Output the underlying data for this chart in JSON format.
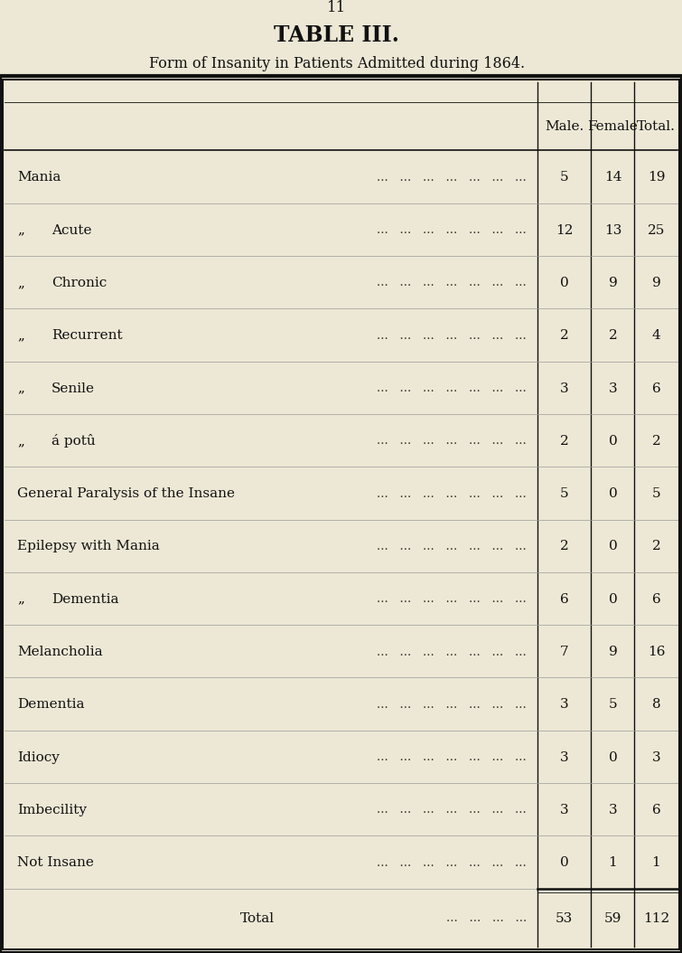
{
  "page_number": "11",
  "title": "TABLE III.",
  "subtitle": "Form of Insanity in Patients Admitted during 1864.",
  "col_headers": [
    "Male.",
    "Female",
    "Total."
  ],
  "rows": [
    {
      "label": "Mania",
      "indent": 0,
      "prefix": "",
      "male": "5",
      "female": "14",
      "total": "19"
    },
    {
      "label": "Acute",
      "indent": 1,
      "prefix": "„",
      "male": "12",
      "female": "13",
      "total": "25"
    },
    {
      "label": "Chronic",
      "indent": 1,
      "prefix": "„",
      "male": "0",
      "female": "9",
      "total": "9"
    },
    {
      "label": "Recurrent",
      "indent": 1,
      "prefix": "„",
      "male": "2",
      "female": "2",
      "total": "4"
    },
    {
      "label": "Senile",
      "indent": 1,
      "prefix": "„",
      "male": "3",
      "female": "3",
      "total": "6"
    },
    {
      "label": "á potû",
      "indent": 1,
      "prefix": "„",
      "male": "2",
      "female": "0",
      "total": "2"
    },
    {
      "label": "General Paralysis of the Insane",
      "indent": 0,
      "prefix": "",
      "male": "5",
      "female": "0",
      "total": "5"
    },
    {
      "label": "Epilepsy with Mania",
      "indent": 0,
      "prefix": "",
      "male": "2",
      "female": "0",
      "total": "2"
    },
    {
      "label": "Dementia",
      "indent": 1,
      "prefix": "„",
      "male": "6",
      "female": "0",
      "total": "6"
    },
    {
      "label": "Melancholia",
      "indent": 0,
      "prefix": "",
      "male": "7",
      "female": "9",
      "total": "16"
    },
    {
      "label": "Dementia",
      "indent": 0,
      "prefix": "",
      "male": "3",
      "female": "5",
      "total": "8"
    },
    {
      "label": "Idiocy",
      "indent": 0,
      "prefix": "",
      "male": "3",
      "female": "0",
      "total": "3"
    },
    {
      "label": "Imbecility",
      "indent": 0,
      "prefix": "",
      "male": "3",
      "female": "3",
      "total": "6"
    },
    {
      "label": "Not Insane",
      "indent": 0,
      "prefix": "",
      "male": "0",
      "female": "1",
      "total": "1"
    }
  ],
  "total_row": {
    "label": "Total",
    "male": "53",
    "female": "59",
    "total": "112"
  },
  "bg_color": "#ede8d5",
  "table_bg": "#ede8d5",
  "border_color": "#111111",
  "title_fontsize": 17,
  "subtitle_fontsize": 11.5,
  "header_fontsize": 11,
  "row_fontsize": 11,
  "page_num_fontsize": 12,
  "dots_text": "...   ...   ...   ...   ...   ...   ..."
}
